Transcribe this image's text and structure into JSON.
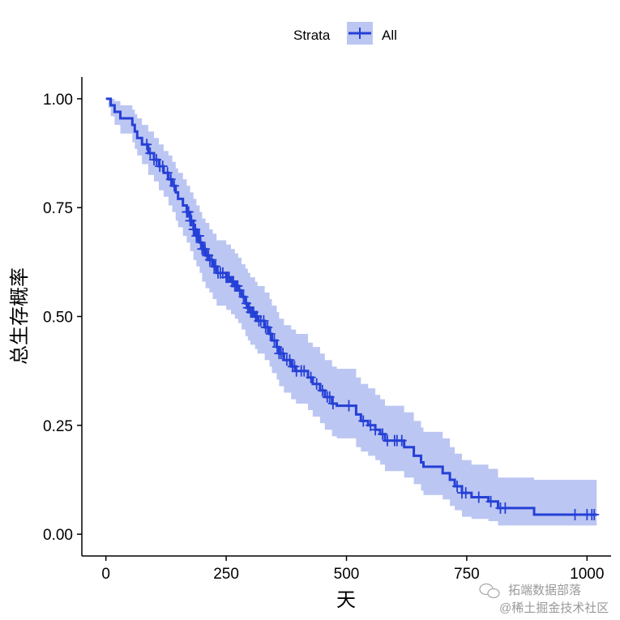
{
  "chart_data": {
    "type": "line",
    "subtype": "kaplan-meier",
    "xlabel": "天",
    "ylabel": "总生存概率",
    "xlim": [
      -50,
      1050
    ],
    "ylim": [
      -0.05,
      1.05
    ],
    "xticks": [
      0,
      250,
      500,
      750,
      1000
    ],
    "xtick_labels": [
      "0",
      "250",
      "500",
      "750",
      "1000"
    ],
    "yticks": [
      0,
      0.25,
      0.5,
      0.75,
      1.0
    ],
    "ytick_labels": [
      "0.00",
      "0.25",
      "0.50",
      "0.75",
      "1.00"
    ],
    "legend": {
      "title": "Strata",
      "position": "top",
      "entries": [
        "All"
      ]
    },
    "colors": {
      "line": "#2540d6",
      "band": "#bcc6f2",
      "axis": "#000000"
    },
    "series": [
      {
        "name": "All",
        "steps": [
          [
            0,
            1.0
          ],
          [
            5,
            1.0
          ],
          [
            10,
            0.985
          ],
          [
            18,
            0.97
          ],
          [
            30,
            0.955
          ],
          [
            55,
            0.94
          ],
          [
            60,
            0.925
          ],
          [
            65,
            0.91
          ],
          [
            75,
            0.895
          ],
          [
            88,
            0.875
          ],
          [
            100,
            0.86
          ],
          [
            110,
            0.845
          ],
          [
            120,
            0.83
          ],
          [
            130,
            0.815
          ],
          [
            138,
            0.8
          ],
          [
            145,
            0.785
          ],
          [
            150,
            0.77
          ],
          [
            160,
            0.755
          ],
          [
            168,
            0.74
          ],
          [
            175,
            0.72
          ],
          [
            182,
            0.7
          ],
          [
            188,
            0.685
          ],
          [
            195,
            0.67
          ],
          [
            200,
            0.655
          ],
          [
            207,
            0.64
          ],
          [
            215,
            0.63
          ],
          [
            222,
            0.615
          ],
          [
            230,
            0.6
          ],
          [
            250,
            0.59
          ],
          [
            260,
            0.58
          ],
          [
            268,
            0.57
          ],
          [
            275,
            0.56
          ],
          [
            282,
            0.545
          ],
          [
            290,
            0.53
          ],
          [
            295,
            0.52
          ],
          [
            300,
            0.51
          ],
          [
            310,
            0.5
          ],
          [
            315,
            0.49
          ],
          [
            330,
            0.475
          ],
          [
            340,
            0.46
          ],
          [
            345,
            0.445
          ],
          [
            355,
            0.43
          ],
          [
            360,
            0.415
          ],
          [
            370,
            0.4
          ],
          [
            385,
            0.385
          ],
          [
            395,
            0.375
          ],
          [
            420,
            0.36
          ],
          [
            430,
            0.345
          ],
          [
            445,
            0.33
          ],
          [
            455,
            0.315
          ],
          [
            470,
            0.3
          ],
          [
            480,
            0.295
          ],
          [
            520,
            0.275
          ],
          [
            530,
            0.26
          ],
          [
            545,
            0.25
          ],
          [
            560,
            0.24
          ],
          [
            570,
            0.23
          ],
          [
            580,
            0.215
          ],
          [
            620,
            0.2
          ],
          [
            640,
            0.18
          ],
          [
            655,
            0.165
          ],
          [
            660,
            0.155
          ],
          [
            700,
            0.14
          ],
          [
            715,
            0.125
          ],
          [
            725,
            0.11
          ],
          [
            740,
            0.095
          ],
          [
            760,
            0.085
          ],
          [
            795,
            0.075
          ],
          [
            815,
            0.06
          ],
          [
            890,
            0.045
          ],
          [
            1020,
            0.045
          ]
        ],
        "lower_steps": [
          [
            0,
            1.0
          ],
          [
            5,
            0.98
          ],
          [
            10,
            0.96
          ],
          [
            18,
            0.94
          ],
          [
            30,
            0.92
          ],
          [
            55,
            0.9
          ],
          [
            60,
            0.885
          ],
          [
            65,
            0.87
          ],
          [
            75,
            0.85
          ],
          [
            88,
            0.825
          ],
          [
            100,
            0.81
          ],
          [
            110,
            0.79
          ],
          [
            120,
            0.775
          ],
          [
            130,
            0.755
          ],
          [
            138,
            0.74
          ],
          [
            145,
            0.72
          ],
          [
            150,
            0.705
          ],
          [
            160,
            0.685
          ],
          [
            168,
            0.67
          ],
          [
            175,
            0.65
          ],
          [
            182,
            0.63
          ],
          [
            188,
            0.615
          ],
          [
            195,
            0.6
          ],
          [
            200,
            0.58
          ],
          [
            207,
            0.565
          ],
          [
            215,
            0.555
          ],
          [
            222,
            0.54
          ],
          [
            230,
            0.525
          ],
          [
            250,
            0.515
          ],
          [
            260,
            0.505
          ],
          [
            268,
            0.495
          ],
          [
            275,
            0.485
          ],
          [
            282,
            0.47
          ],
          [
            290,
            0.455
          ],
          [
            295,
            0.445
          ],
          [
            300,
            0.435
          ],
          [
            310,
            0.425
          ],
          [
            315,
            0.415
          ],
          [
            330,
            0.4
          ],
          [
            340,
            0.385
          ],
          [
            345,
            0.37
          ],
          [
            355,
            0.355
          ],
          [
            360,
            0.34
          ],
          [
            370,
            0.325
          ],
          [
            385,
            0.31
          ],
          [
            395,
            0.3
          ],
          [
            420,
            0.285
          ],
          [
            430,
            0.27
          ],
          [
            445,
            0.255
          ],
          [
            455,
            0.24
          ],
          [
            470,
            0.225
          ],
          [
            480,
            0.22
          ],
          [
            520,
            0.2
          ],
          [
            530,
            0.19
          ],
          [
            545,
            0.18
          ],
          [
            560,
            0.17
          ],
          [
            570,
            0.16
          ],
          [
            580,
            0.145
          ],
          [
            620,
            0.13
          ],
          [
            640,
            0.115
          ],
          [
            655,
            0.1
          ],
          [
            660,
            0.09
          ],
          [
            700,
            0.08
          ],
          [
            715,
            0.065
          ],
          [
            725,
            0.055
          ],
          [
            740,
            0.04
          ],
          [
            760,
            0.035
          ],
          [
            795,
            0.03
          ],
          [
            815,
            0.02
          ],
          [
            890,
            0.02
          ],
          [
            1020,
            0.02
          ]
        ],
        "upper_steps": [
          [
            0,
            1.0
          ],
          [
            5,
            1.0
          ],
          [
            10,
            1.0
          ],
          [
            18,
            0.995
          ],
          [
            30,
            0.985
          ],
          [
            55,
            0.975
          ],
          [
            60,
            0.965
          ],
          [
            65,
            0.955
          ],
          [
            75,
            0.94
          ],
          [
            88,
            0.925
          ],
          [
            100,
            0.91
          ],
          [
            110,
            0.895
          ],
          [
            120,
            0.88
          ],
          [
            130,
            0.87
          ],
          [
            138,
            0.855
          ],
          [
            145,
            0.84
          ],
          [
            150,
            0.83
          ],
          [
            160,
            0.815
          ],
          [
            168,
            0.8
          ],
          [
            175,
            0.785
          ],
          [
            182,
            0.77
          ],
          [
            188,
            0.755
          ],
          [
            195,
            0.74
          ],
          [
            200,
            0.725
          ],
          [
            207,
            0.715
          ],
          [
            215,
            0.7
          ],
          [
            222,
            0.69
          ],
          [
            230,
            0.675
          ],
          [
            250,
            0.665
          ],
          [
            260,
            0.655
          ],
          [
            268,
            0.645
          ],
          [
            275,
            0.635
          ],
          [
            282,
            0.62
          ],
          [
            290,
            0.61
          ],
          [
            295,
            0.6
          ],
          [
            300,
            0.59
          ],
          [
            310,
            0.58
          ],
          [
            315,
            0.57
          ],
          [
            330,
            0.555
          ],
          [
            340,
            0.54
          ],
          [
            345,
            0.525
          ],
          [
            355,
            0.51
          ],
          [
            360,
            0.495
          ],
          [
            370,
            0.48
          ],
          [
            385,
            0.47
          ],
          [
            395,
            0.46
          ],
          [
            420,
            0.44
          ],
          [
            430,
            0.43
          ],
          [
            445,
            0.415
          ],
          [
            455,
            0.4
          ],
          [
            470,
            0.385
          ],
          [
            480,
            0.38
          ],
          [
            520,
            0.36
          ],
          [
            530,
            0.345
          ],
          [
            545,
            0.335
          ],
          [
            560,
            0.32
          ],
          [
            570,
            0.31
          ],
          [
            580,
            0.295
          ],
          [
            620,
            0.28
          ],
          [
            640,
            0.26
          ],
          [
            655,
            0.245
          ],
          [
            660,
            0.235
          ],
          [
            700,
            0.22
          ],
          [
            715,
            0.2
          ],
          [
            725,
            0.185
          ],
          [
            740,
            0.17
          ],
          [
            760,
            0.16
          ],
          [
            795,
            0.15
          ],
          [
            815,
            0.13
          ],
          [
            890,
            0.125
          ],
          [
            1020,
            0.125
          ]
        ],
        "censored_x": [
          85,
          92,
          100,
          105,
          112,
          118,
          128,
          135,
          142,
          168,
          170,
          172,
          175,
          178,
          182,
          184,
          186,
          188,
          190,
          192,
          194,
          197,
          200,
          203,
          206,
          210,
          213,
          216,
          220,
          225,
          228,
          233,
          238,
          243,
          250,
          253,
          256,
          262,
          265,
          268,
          271,
          274,
          278,
          286,
          292,
          295,
          298,
          301,
          304,
          307,
          311,
          314,
          318,
          322,
          328,
          332,
          336,
          342,
          350,
          356,
          360,
          364,
          368,
          376,
          382,
          388,
          392,
          396,
          406,
          412,
          426,
          438,
          450,
          460,
          465,
          472,
          505,
          535,
          550,
          560,
          575,
          585,
          600,
          605,
          615,
          730,
          740,
          748,
          775,
          800,
          820,
          830,
          975,
          1000,
          1010,
          1015
        ]
      }
    ]
  },
  "watermark": {
    "line1": "拓端数据部落",
    "line2": "@稀土掘金技术社区"
  }
}
